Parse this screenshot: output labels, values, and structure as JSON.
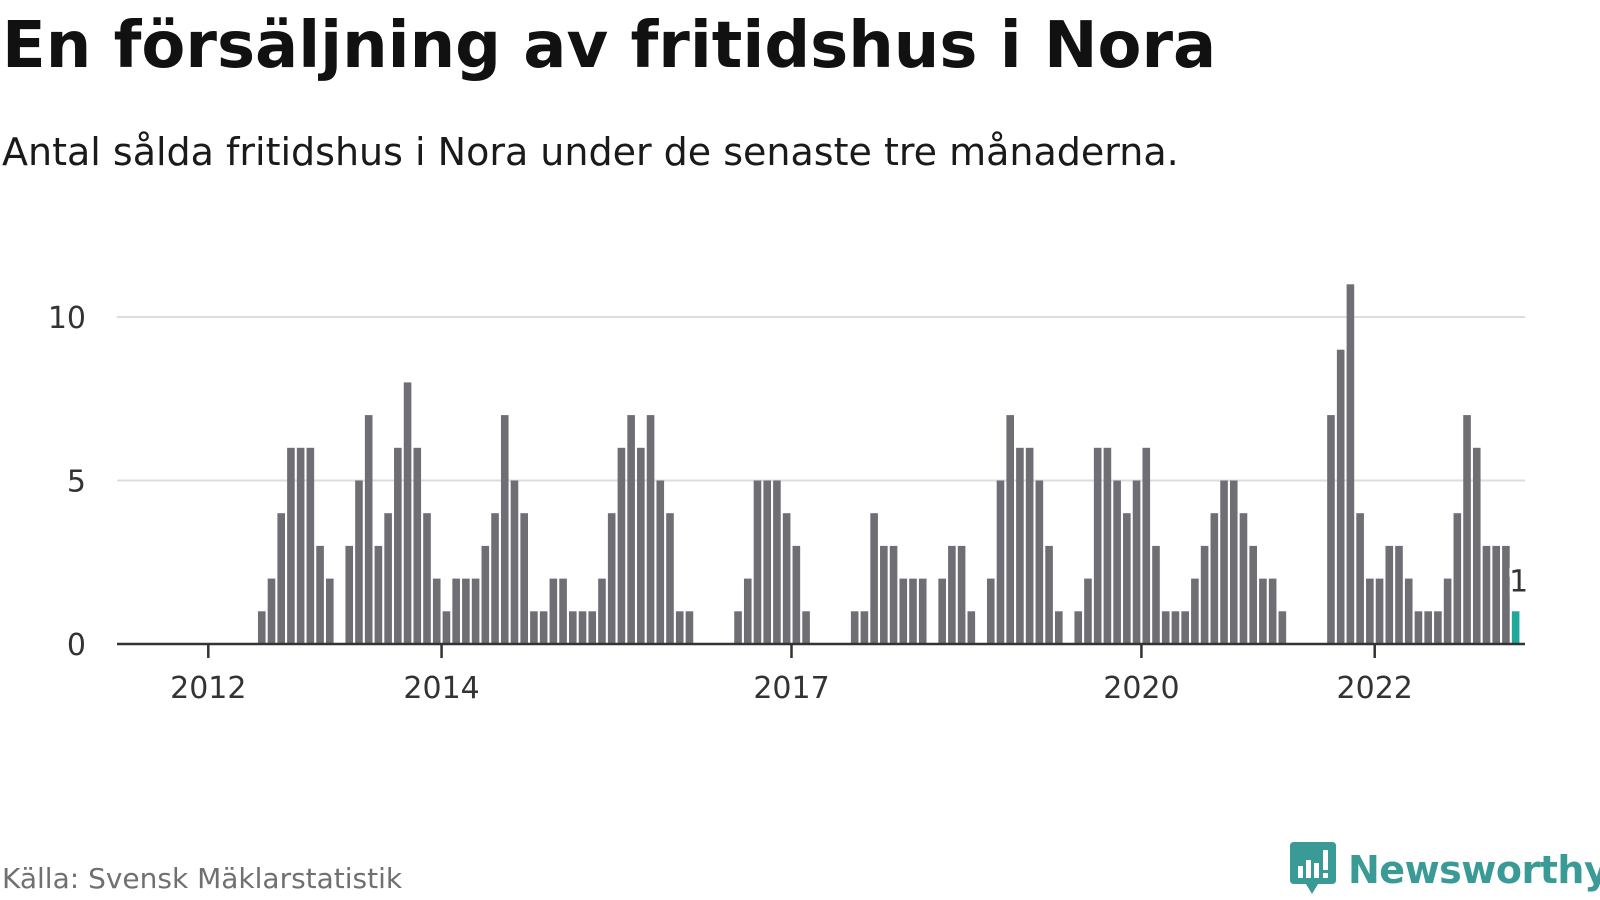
{
  "title": "En försäljning av fritidshus i Nora",
  "subtitle": "Antal sålda fritidshus i Nora under de senaste tre månaderna.",
  "source": "Källa: Svensk Mäklarstatistik",
  "brand": {
    "name": "Newsworthy",
    "icon": "newsworthy-logo-icon",
    "color": "#3a9b96"
  },
  "colors": {
    "bar": "#6f6e74",
    "highlight": "#1fa89b",
    "grid": "#dddddd",
    "axis": "#333333"
  },
  "chart_data": {
    "type": "bar",
    "x_unit": "month",
    "start": "2011-10",
    "values": [
      0,
      0,
      0,
      0,
      0,
      0,
      0,
      0,
      1,
      2,
      4,
      6,
      6,
      6,
      3,
      2,
      0,
      3,
      5,
      7,
      3,
      4,
      6,
      8,
      6,
      4,
      2,
      1,
      2,
      2,
      2,
      3,
      4,
      7,
      5,
      4,
      1,
      1,
      2,
      2,
      1,
      1,
      1,
      2,
      4,
      6,
      7,
      6,
      7,
      5,
      4,
      1,
      1,
      0,
      0,
      0,
      0,
      1,
      2,
      5,
      5,
      5,
      4,
      3,
      1,
      0,
      0,
      0,
      0,
      1,
      1,
      4,
      3,
      3,
      2,
      2,
      2,
      0,
      2,
      3,
      3,
      1,
      0,
      2,
      5,
      7,
      6,
      6,
      5,
      3,
      1,
      0,
      1,
      2,
      6,
      6,
      5,
      4,
      5,
      6,
      3,
      1,
      1,
      1,
      2,
      3,
      4,
      5,
      5,
      4,
      3,
      2,
      2,
      1,
      0,
      0,
      0,
      0,
      7,
      9,
      11,
      4,
      2,
      2,
      3,
      3,
      2,
      1,
      1,
      1,
      2,
      4,
      7,
      6,
      3,
      3,
      3,
      1
    ],
    "highlight_last": true,
    "annotation": {
      "label": "1"
    },
    "x_ticks": [
      "2012",
      "2014",
      "2017",
      "2020",
      "2022"
    ],
    "y_ticks": [
      "0",
      "5",
      "10"
    ],
    "ylim": [
      0,
      11
    ],
    "grid": true,
    "legend": "none"
  }
}
